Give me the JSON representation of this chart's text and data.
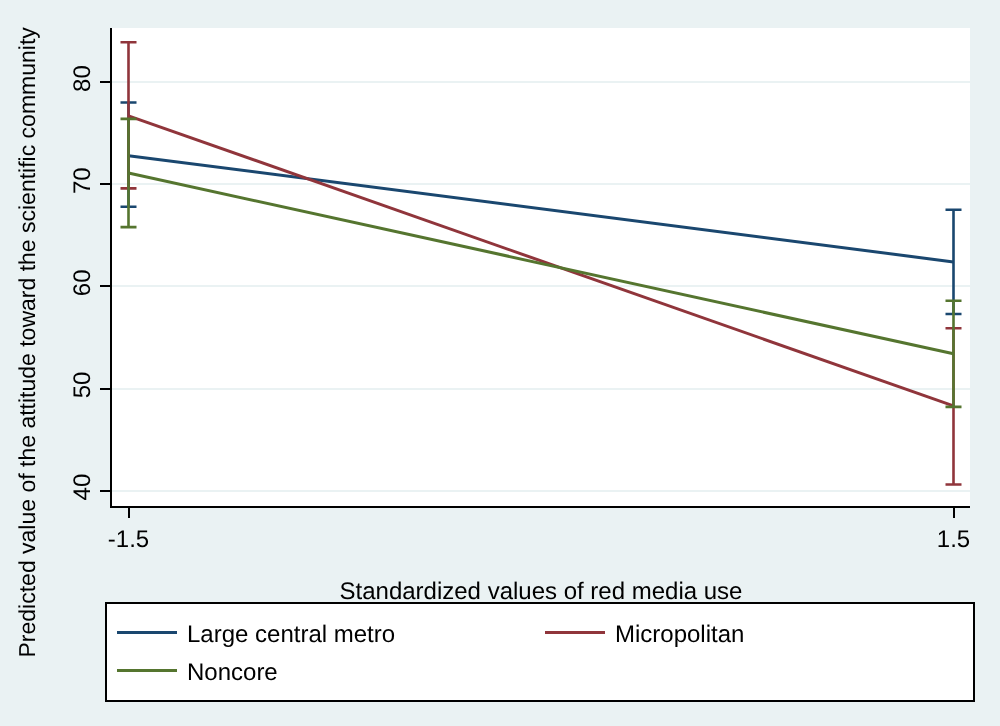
{
  "chart_data": {
    "type": "line",
    "xlabel": "Standardized values of red media use",
    "ylabel": "Predicted value of the attitude toward the scientific community",
    "x": [
      -1.5,
      1.5
    ],
    "xlim": [
      -1.56,
      1.56
    ],
    "xticks": [
      -1.5,
      1.5
    ],
    "ylim": [
      38.5,
      85.3
    ],
    "yticks": [
      40,
      50,
      60,
      70,
      80
    ],
    "grid": "y",
    "legend": "bottom",
    "marker": "none",
    "line_style": "solid",
    "series": [
      {
        "name": "Large central metro",
        "color": "#1a476f",
        "values": [
          72.8,
          62.4
        ],
        "errors": [
          [
            67.8,
            78.0
          ],
          [
            57.3,
            67.5
          ]
        ]
      },
      {
        "name": "Micropolitan",
        "color": "#90353b",
        "values": [
          76.7,
          48.3
        ],
        "errors": [
          [
            69.6,
            83.9
          ],
          [
            40.6,
            55.9
          ]
        ]
      },
      {
        "name": "Noncore",
        "color": "#55752f",
        "values": [
          71.1,
          53.4
        ],
        "errors": [
          [
            65.8,
            76.4
          ],
          [
            48.2,
            58.6
          ]
        ]
      }
    ]
  }
}
